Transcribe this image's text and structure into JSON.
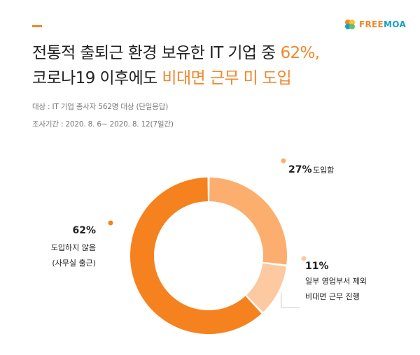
{
  "brand": {
    "logo_text_a": "FREE",
    "logo_text_b": "MOA",
    "orange": "#f0872a",
    "blue": "#19a0c8"
  },
  "headline": {
    "line1_prefix": "전통적 출퇴근 환경 보유한 IT 기업 중 ",
    "line1_highlight": "62%,",
    "line2_prefix": "코로나19 이후에도 ",
    "line2_highlight": "비대면 근무 미 도입"
  },
  "meta": {
    "target": "대상 : IT 기업 종사자 562명 대상 (단일응답)",
    "period": "조사기간 : 2020. 8. 6~ 2020. 8. 12(7일간)"
  },
  "chart_data": {
    "type": "pie",
    "donut": true,
    "categories": [
      "도입함",
      "일부 영업부서 제외 비대면 근무 진행",
      "도입하지 않음 (사무실 출근)"
    ],
    "values": [
      27,
      11,
      62
    ],
    "colors": [
      "#fbae6e",
      "#fcc9a0",
      "#f5821f"
    ],
    "labels": [
      {
        "pct": "27%",
        "lines": [
          "도입함"
        ]
      },
      {
        "pct": "11%",
        "lines": [
          "일부 영업부서 제외",
          "비대면 근무 진행"
        ]
      },
      {
        "pct": "62%",
        "lines": [
          "도입하지 않음",
          "(사무실 출근)"
        ]
      }
    ]
  }
}
